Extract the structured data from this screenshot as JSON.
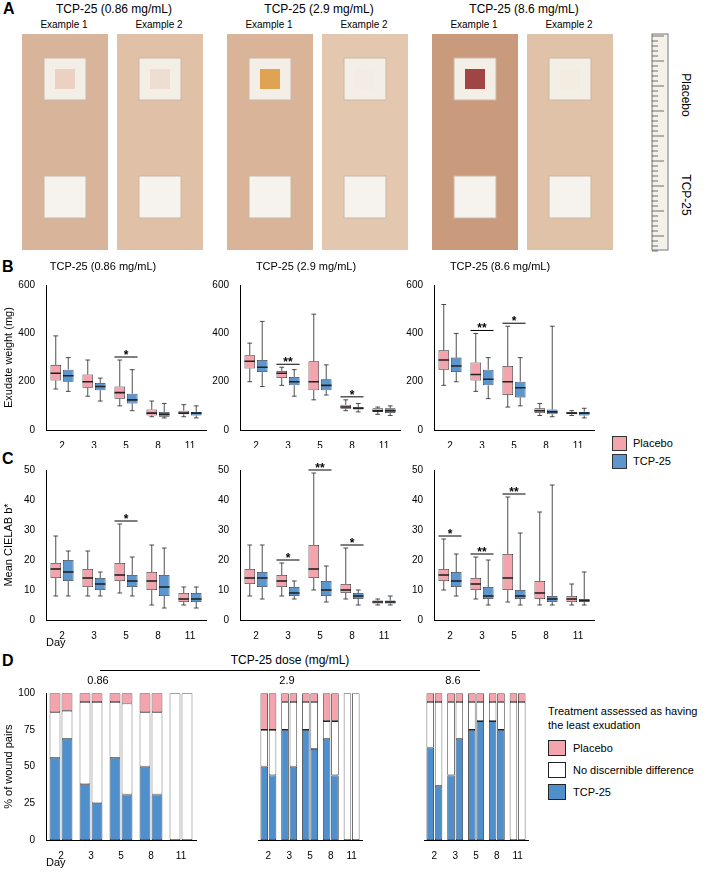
{
  "panel_a": {
    "letter": "A",
    "groups": [
      {
        "title": "TCP-25 (0.86 mg/mL)",
        "examples": [
          "Example 1",
          "Example 2"
        ]
      },
      {
        "title": "TCP-25 (2.9 mg/mL)",
        "examples": [
          "Example 1",
          "Example 2"
        ]
      },
      {
        "title": "TCP-25 (8.6 mg/mL)",
        "examples": [
          "Example 1",
          "Example 2"
        ]
      }
    ],
    "row_labels": [
      "Placebo",
      "TCP-25"
    ]
  },
  "chart_data": [
    {
      "panel": "B",
      "type": "box",
      "y_label": "Exudate weight (mg)",
      "categories": [
        "2",
        "3",
        "5",
        "8",
        "11"
      ],
      "ylim": [
        0,
        600
      ],
      "yticks": [
        0,
        200,
        400,
        600
      ],
      "legend": "right",
      "series": [
        {
          "name": "Placebo",
          "color": "#f4a4ac"
        },
        {
          "name": "TCP-25",
          "color": "#5b96cf"
        }
      ],
      "subplots": [
        {
          "title": "TCP-25 (0.86 mg/mL)",
          "values": [
            [
              [
                170,
                205,
                235,
                270,
                390
              ],
              [
                140,
                175,
                200,
                230,
                290
              ],
              [
                100,
                130,
                155,
                180,
                290
              ],
              [
                55,
                60,
                70,
                85,
                120
              ],
              [
                55,
                65,
                70,
                80,
                105
              ]
            ],
            [
              [
                160,
                200,
                225,
                250,
                300
              ],
              [
                120,
                165,
                180,
                195,
                215
              ],
              [
                80,
                110,
                125,
                150,
                250
              ],
              [
                50,
                55,
                65,
                75,
                110
              ],
              [
                50,
                60,
                70,
                75,
                100
              ]
            ]
          ],
          "annotations": [
            {
              "category": "5",
              "label": "*"
            }
          ]
        },
        {
          "title": "TCP-25 (2.9 mg/mL)",
          "values": [
            [
              [
                200,
                255,
                285,
                310,
                360
              ],
              [
                185,
                215,
                235,
                245,
                260
              ],
              [
                125,
                165,
                200,
                285,
                480
              ],
              [
                80,
                88,
                95,
                105,
                125
              ],
              [
                65,
                75,
                80,
                90,
                95
              ]
            ],
            [
              [
                180,
                240,
                260,
                290,
                450
              ],
              [
                140,
                185,
                200,
                220,
                250
              ],
              [
                145,
                165,
                185,
                210,
                270
              ],
              [
                75,
                85,
                90,
                95,
                110
              ],
              [
                60,
                70,
                80,
                90,
                100
              ]
            ]
          ],
          "annotations": [
            {
              "category": "3",
              "label": "**"
            },
            {
              "category": "8",
              "label": "*"
            }
          ]
        },
        {
          "title": "TCP-25 (8.6 mg/mL)",
          "values": [
            [
              [
                185,
                250,
                290,
                330,
                520
              ],
              [
                160,
                205,
                230,
                280,
                400
              ],
              [
                95,
                145,
                200,
                265,
                430
              ],
              [
                60,
                70,
                80,
                90,
                110
              ],
              [
                60,
                65,
                70,
                75,
                80
              ]
            ],
            [
              [
                200,
                240,
                265,
                300,
                400
              ],
              [
                130,
                185,
                210,
                250,
                300
              ],
              [
                100,
                135,
                175,
                200,
                300
              ],
              [
                55,
                65,
                75,
                85,
                430
              ],
              [
                50,
                60,
                70,
                75,
                90
              ]
            ]
          ],
          "annotations": [
            {
              "category": "3",
              "label": "**"
            },
            {
              "category": "5",
              "label": "*"
            }
          ]
        }
      ]
    },
    {
      "panel": "C",
      "type": "box",
      "y_label": "Mean CIELAB b*",
      "x_label": "Day",
      "categories": [
        "2",
        "3",
        "5",
        "8",
        "11"
      ],
      "ylim": [
        0,
        50
      ],
      "yticks": [
        0,
        10,
        20,
        30,
        40,
        50
      ],
      "series": [
        {
          "name": "Placebo",
          "color": "#f4a4ac"
        },
        {
          "name": "TCP-25",
          "color": "#5b96cf"
        }
      ],
      "subplots": [
        {
          "title": "",
          "values": [
            [
              [
                8,
                14,
                17,
                19,
                28
              ],
              [
                8,
                11,
                14,
                17,
                23
              ],
              [
                9,
                13,
                15,
                19,
                32
              ],
              [
                5,
                10,
                13,
                16,
                25
              ],
              [
                5,
                6,
                7,
                9,
                11
              ]
            ],
            [
              [
                8,
                13,
                16,
                20,
                23
              ],
              [
                8,
                10,
                12,
                14,
                16
              ],
              [
                8,
                11,
                13,
                15,
                21
              ],
              [
                4,
                8,
                11,
                15,
                24
              ],
              [
                4,
                6,
                7,
                9,
                11
              ]
            ]
          ],
          "annotations": [
            {
              "category": "5",
              "label": "*"
            }
          ]
        },
        {
          "title": "",
          "values": [
            [
              [
                8,
                12,
                14,
                17,
                25
              ],
              [
                8,
                11,
                13,
                15,
                19
              ],
              [
                10,
                14,
                17,
                25,
                49
              ],
              [
                7,
                9,
                10,
                12,
                24
              ],
              [
                5,
                5.5,
                6,
                6.5,
                7
              ]
            ],
            [
              [
                7,
                11,
                14,
                16,
                25
              ],
              [
                7,
                8,
                9,
                11,
                13
              ],
              [
                6,
                8,
                10,
                13,
                18
              ],
              [
                5,
                7,
                8,
                9,
                10
              ],
              [
                5,
                5.5,
                6,
                6.5,
                8
              ]
            ]
          ],
          "annotations": [
            {
              "category": "3",
              "label": "*"
            },
            {
              "category": "5",
              "label": "**"
            },
            {
              "category": "8",
              "label": "*"
            }
          ]
        },
        {
          "title": "",
          "values": [
            [
              [
                10,
                13,
                15,
                17,
                27
              ],
              [
                7,
                10,
                12,
                14,
                21
              ],
              [
                6,
                10,
                14,
                22,
                41
              ],
              [
                5,
                7,
                9,
                13,
                36
              ],
              [
                5,
                6,
                7,
                8,
                12
              ]
            ],
            [
              [
                8,
                11,
                13,
                16,
                22
              ],
              [
                5,
                7,
                8,
                11,
                20
              ],
              [
                5,
                7,
                8,
                10,
                29
              ],
              [
                5,
                6,
                7,
                8,
                45
              ],
              [
                5,
                6,
                6.5,
                7,
                16
              ]
            ]
          ],
          "annotations": [
            {
              "category": "2",
              "label": "*"
            },
            {
              "category": "3",
              "label": "**"
            },
            {
              "category": "5",
              "label": "**"
            }
          ]
        }
      ]
    },
    {
      "panel": "D",
      "type": "bar",
      "stacked": true,
      "title": "TCP-25 dose (mg/mL)",
      "y_label": "% of wound pairs",
      "x_label": "Day",
      "categories": [
        "2",
        "3",
        "5",
        "8",
        "11"
      ],
      "ylim": [
        0,
        100
      ],
      "yticks": [
        0,
        25,
        50,
        75,
        100
      ],
      "legend": "right",
      "legend_title": "Treatment assessed as having the least exudation",
      "series": [
        {
          "name": "TCP-25",
          "color": "#4f8fcc"
        },
        {
          "name": "No discernible difference",
          "color": "#ffffff"
        },
        {
          "name": "Placebo",
          "color": "#f4a4ac"
        }
      ],
      "subplots": [
        {
          "title": "0.86",
          "values": [
            [
              [
                56,
                69
              ],
              [
                38,
                25
              ],
              [
                56,
                31
              ],
              [
                50,
                31
              ],
              [
                0,
                0
              ]
            ],
            [
              [
                31,
                19
              ],
              [
                56,
                69
              ],
              [
                38,
                62
              ],
              [
                37,
                56
              ],
              [
                100,
                100
              ]
            ],
            [
              [
                13,
                12
              ],
              [
                6,
                6
              ],
              [
                6,
                7
              ],
              [
                13,
                13
              ],
              [
                0,
                0
              ]
            ]
          ]
        },
        {
          "title": "2.9",
          "values": [
            [
              [
                50,
                44
              ],
              [
                75,
                50
              ],
              [
                75,
                62
              ],
              [
                69,
                44
              ],
              [
                0,
                0
              ]
            ],
            [
              [
                25,
                31
              ],
              [
                19,
                44
              ],
              [
                19,
                32
              ],
              [
                12,
                37
              ],
              [
                100,
                100
              ]
            ],
            [
              [
                25,
                25
              ],
              [
                6,
                6
              ],
              [
                6,
                6
              ],
              [
                19,
                19
              ],
              [
                0,
                0
              ]
            ]
          ]
        },
        {
          "title": "8.6",
          "values": [
            [
              [
                63,
                37
              ],
              [
                44,
                69
              ],
              [
                75,
                81
              ],
              [
                81,
                75
              ],
              [
                0,
                0
              ]
            ],
            [
              [
                31,
                57
              ],
              [
                50,
                25
              ],
              [
                19,
                13
              ],
              [
                13,
                19
              ],
              [
                94,
                94
              ]
            ],
            [
              [
                6,
                6
              ],
              [
                6,
                6
              ],
              [
                6,
                6
              ],
              [
                6,
                6
              ],
              [
                6,
                6
              ]
            ]
          ]
        }
      ]
    }
  ]
}
